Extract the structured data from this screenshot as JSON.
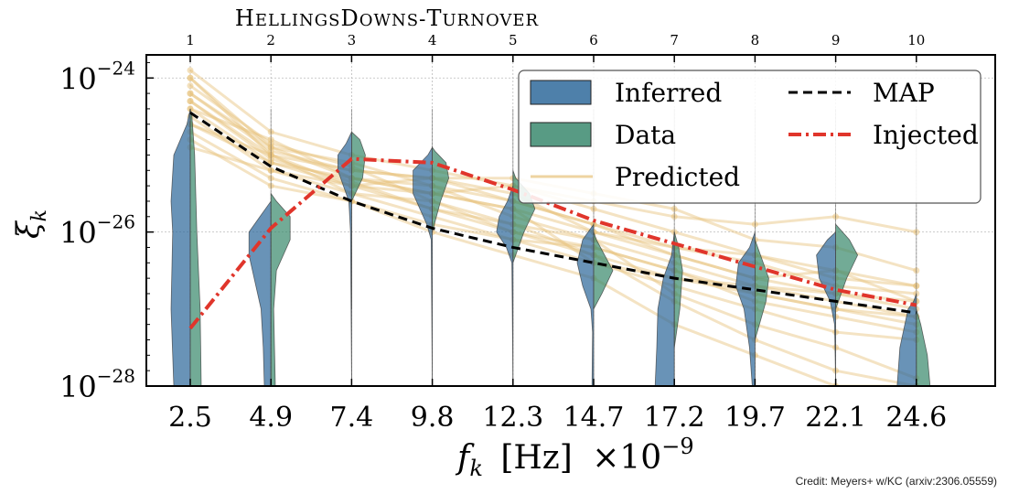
{
  "chart_data": {
    "type": "violin",
    "title_main": "HellingsDowns-Turnover",
    "ylabel": "ξ_k",
    "xlabel_symbol": "f_k",
    "xlabel_unit": "[Hz]",
    "xlabel_scale": "×10",
    "xlabel_exp": "−9",
    "credit": "Credit: Meyers+ w/KC (arxiv:2306.05559)",
    "yscale": "log",
    "ylim": [
      1e-28,
      1e-23
    ],
    "yticks": [
      {
        "base": "10",
        "exp": "−24",
        "value": -24
      },
      {
        "base": "10",
        "exp": "−26",
        "value": -26
      },
      {
        "base": "10",
        "exp": "−28",
        "value": -28
      }
    ],
    "x_bottom_ticks": [
      "2.5",
      "4.9",
      "7.4",
      "9.8",
      "12.3",
      "14.7",
      "17.2",
      "19.7",
      "22.1",
      "24.6"
    ],
    "x_top_ticks": [
      "1",
      "2",
      "3",
      "4",
      "5",
      "6",
      "7",
      "8",
      "9",
      "10"
    ],
    "colors": {
      "inferred": "#2f6a9b",
      "data": "#3b8a6e",
      "predicted": "#e7c279",
      "map": "#000000",
      "injected": "#e0352b"
    },
    "legend": {
      "position": "upper-right",
      "entries": [
        {
          "label": "Inferred",
          "kind": "patch",
          "color_key": "inferred"
        },
        {
          "label": "MAP",
          "kind": "dashed",
          "color_key": "map"
        },
        {
          "label": "Data",
          "kind": "patch",
          "color_key": "data"
        },
        {
          "label": "Injected",
          "kind": "dashdot",
          "color_key": "injected"
        },
        {
          "label": "Predicted",
          "kind": "line",
          "color_key": "predicted"
        }
      ]
    },
    "series": [
      {
        "name": "MAP",
        "log10_values": [
          -24.45,
          -25.15,
          -25.6,
          -25.95,
          -26.2,
          -26.4,
          -26.6,
          -26.75,
          -26.9,
          -27.05
        ]
      },
      {
        "name": "Injected",
        "log10_values": [
          -27.25,
          -25.95,
          -25.05,
          -25.1,
          -25.45,
          -25.85,
          -26.15,
          -26.45,
          -26.75,
          -26.95
        ]
      }
    ],
    "violins": {
      "inferred_left": [
        {
          "k": 1,
          "shape": [
            [
              -28.0,
              0.3
            ],
            [
              -27.0,
              0.35
            ],
            [
              -26.0,
              0.32
            ],
            [
              -25.6,
              0.35
            ],
            [
              -25.0,
              0.3
            ],
            [
              -24.6,
              0.06
            ],
            [
              -24.4,
              0.0
            ]
          ]
        },
        {
          "k": 2,
          "shape": [
            [
              -28.0,
              0.12
            ],
            [
              -27.5,
              0.14
            ],
            [
              -27.0,
              0.18
            ],
            [
              -26.3,
              0.4
            ],
            [
              -26.0,
              0.4
            ],
            [
              -25.8,
              0.2
            ],
            [
              -25.6,
              0.0
            ]
          ]
        },
        {
          "k": 3,
          "shape": [
            [
              -28.0,
              0.0
            ],
            [
              -26.0,
              0.02
            ],
            [
              -25.6,
              0.05
            ],
            [
              -25.2,
              0.25
            ],
            [
              -25.0,
              0.25
            ],
            [
              -24.85,
              0.1
            ],
            [
              -24.7,
              0.0
            ]
          ]
        },
        {
          "k": 4,
          "shape": [
            [
              -28.0,
              0.0
            ],
            [
              -26.1,
              0.02
            ],
            [
              -25.9,
              0.1
            ],
            [
              -25.5,
              0.35
            ],
            [
              -25.2,
              0.35
            ],
            [
              -25.0,
              0.08
            ],
            [
              -24.9,
              0.0
            ]
          ]
        },
        {
          "k": 5,
          "shape": [
            [
              -28.0,
              0.0
            ],
            [
              -26.4,
              0.02
            ],
            [
              -26.2,
              0.12
            ],
            [
              -26.0,
              0.3
            ],
            [
              -25.8,
              0.25
            ],
            [
              -25.6,
              0.1
            ],
            [
              -25.4,
              0.0
            ]
          ]
        },
        {
          "k": 6,
          "shape": [
            [
              -28.0,
              0.03
            ],
            [
              -27.3,
              0.02
            ],
            [
              -27.0,
              0.05
            ],
            [
              -26.7,
              0.2
            ],
            [
              -26.4,
              0.3
            ],
            [
              -26.1,
              0.2
            ],
            [
              -25.9,
              0.0
            ]
          ]
        },
        {
          "k": 7,
          "shape": [
            [
              -28.0,
              0.35
            ],
            [
              -27.5,
              0.32
            ],
            [
              -27.0,
              0.3
            ],
            [
              -26.6,
              0.2
            ],
            [
              -26.3,
              0.05
            ],
            [
              -26.0,
              0.0
            ]
          ]
        },
        {
          "k": 8,
          "shape": [
            [
              -28.0,
              0.05
            ],
            [
              -27.5,
              0.1
            ],
            [
              -27.0,
              0.2
            ],
            [
              -26.7,
              0.35
            ],
            [
              -26.4,
              0.3
            ],
            [
              -26.2,
              0.1
            ],
            [
              -26.0,
              0.0
            ]
          ]
        },
        {
          "k": 9,
          "shape": [
            [
              -28.0,
              0.0
            ],
            [
              -27.2,
              0.02
            ],
            [
              -26.9,
              0.1
            ],
            [
              -26.6,
              0.3
            ],
            [
              -26.3,
              0.35
            ],
            [
              -26.1,
              0.15
            ],
            [
              -26.0,
              0.0
            ]
          ]
        },
        {
          "k": 10,
          "shape": [
            [
              -28.0,
              0.35
            ],
            [
              -27.5,
              0.3
            ],
            [
              -27.0,
              0.15
            ],
            [
              -26.9,
              0.05
            ],
            [
              -26.8,
              0.0
            ]
          ]
        }
      ],
      "data_right": [
        {
          "k": 1,
          "shape": [
            [
              -28.0,
              0.2
            ],
            [
              -27.0,
              0.18
            ],
            [
              -26.0,
              0.12
            ],
            [
              -25.0,
              0.08
            ],
            [
              -24.5,
              0.03
            ],
            [
              -24.4,
              0.0
            ]
          ]
        },
        {
          "k": 2,
          "shape": [
            [
              -28.0,
              0.08
            ],
            [
              -27.0,
              0.05
            ],
            [
              -26.5,
              0.1
            ],
            [
              -26.1,
              0.35
            ],
            [
              -25.8,
              0.35
            ],
            [
              -25.6,
              0.1
            ],
            [
              -25.5,
              0.0
            ]
          ]
        },
        {
          "k": 3,
          "shape": [
            [
              -27.0,
              0.0
            ],
            [
              -25.6,
              0.0
            ],
            [
              -25.3,
              0.2
            ],
            [
              -25.0,
              0.25
            ],
            [
              -24.8,
              0.15
            ],
            [
              -24.7,
              0.0
            ]
          ]
        },
        {
          "k": 4,
          "shape": [
            [
              -26.0,
              0.0
            ],
            [
              -25.6,
              0.15
            ],
            [
              -25.3,
              0.3
            ],
            [
              -25.1,
              0.25
            ],
            [
              -24.95,
              0.05
            ],
            [
              -24.9,
              0.0
            ]
          ]
        },
        {
          "k": 5,
          "shape": [
            [
              -26.4,
              0.0
            ],
            [
              -26.0,
              0.2
            ],
            [
              -25.7,
              0.4
            ],
            [
              -25.5,
              0.3
            ],
            [
              -25.3,
              0.05
            ],
            [
              -25.2,
              0.0
            ]
          ]
        },
        {
          "k": 6,
          "shape": [
            [
              -27.0,
              0.0
            ],
            [
              -26.8,
              0.15
            ],
            [
              -26.5,
              0.35
            ],
            [
              -26.3,
              0.2
            ],
            [
              -26.1,
              0.05
            ],
            [
              -26.0,
              0.0
            ]
          ]
        },
        {
          "k": 7,
          "shape": [
            [
              -27.5,
              0.0
            ],
            [
              -27.0,
              0.1
            ],
            [
              -26.5,
              0.15
            ],
            [
              -26.2,
              0.08
            ],
            [
              -26.0,
              0.0
            ]
          ]
        },
        {
          "k": 8,
          "shape": [
            [
              -27.4,
              0.0
            ],
            [
              -26.9,
              0.2
            ],
            [
              -26.6,
              0.25
            ],
            [
              -26.3,
              0.1
            ],
            [
              -26.1,
              0.0
            ]
          ]
        },
        {
          "k": 9,
          "shape": [
            [
              -27.0,
              0.0
            ],
            [
              -26.6,
              0.2
            ],
            [
              -26.3,
              0.4
            ],
            [
              -26.1,
              0.25
            ],
            [
              -25.9,
              0.0
            ]
          ]
        },
        {
          "k": 10,
          "shape": [
            [
              -28.0,
              0.25
            ],
            [
              -27.6,
              0.2
            ],
            [
              -27.2,
              0.08
            ],
            [
              -27.0,
              0.0
            ]
          ]
        }
      ]
    },
    "predicted_lines": [
      [
        -24.0,
        -25.0,
        -25.2,
        -25.3,
        -25.6,
        -25.9,
        -26.2,
        -26.4,
        -26.7,
        -26.8
      ],
      [
        -24.2,
        -24.9,
        -25.1,
        -25.4,
        -25.8,
        -26.1,
        -26.4,
        -26.7,
        -26.9,
        -27.1
      ],
      [
        -24.4,
        -24.8,
        -25.3,
        -25.5,
        -25.7,
        -26.0,
        -26.3,
        -26.6,
        -26.8,
        -26.9
      ],
      [
        -23.9,
        -24.7,
        -25.0,
        -25.2,
        -25.4,
        -25.7,
        -26.0,
        -26.3,
        -26.5,
        -26.7
      ],
      [
        -24.6,
        -25.1,
        -25.4,
        -25.7,
        -26.0,
        -26.2,
        -26.5,
        -26.8,
        -27.0,
        -27.2
      ],
      [
        -24.3,
        -25.0,
        -25.4,
        -25.3,
        -25.3,
        -25.5,
        -25.7,
        -26.1,
        -26.2,
        -26.5
      ],
      [
        -24.5,
        -25.2,
        -25.5,
        -25.8,
        -26.1,
        -26.4,
        -26.7,
        -27.0,
        -27.3,
        -27.4
      ],
      [
        -24.1,
        -24.85,
        -25.15,
        -25.6,
        -26.0,
        -26.3,
        -26.9,
        -27.4,
        -27.8,
        -28.0
      ],
      [
        -24.7,
        -25.3,
        -25.6,
        -26.0,
        -26.3,
        -26.6,
        -27.2,
        -27.6,
        -28.0,
        -28.0
      ],
      [
        -24.0,
        -24.9,
        -25.3,
        -25.5,
        -25.4,
        -25.6,
        -25.8,
        -25.9,
        -25.8,
        -26.0
      ],
      [
        -24.4,
        -25.1,
        -25.3,
        -25.4,
        -25.6,
        -25.9,
        -26.3,
        -26.6,
        -26.5,
        -26.9
      ],
      [
        -24.8,
        -25.4,
        -25.6,
        -25.9,
        -26.1,
        -26.2,
        -26.5,
        -26.9,
        -27.1,
        -27.3
      ],
      [
        -24.2,
        -24.95,
        -25.2,
        -25.3,
        -25.5,
        -26.0,
        -26.2,
        -26.3,
        -26.6,
        -26.7
      ],
      [
        -24.6,
        -25.0,
        -25.5,
        -25.6,
        -25.9,
        -26.3,
        -26.6,
        -26.8,
        -27.0,
        -27.1
      ],
      [
        -24.3,
        -25.05,
        -25.35,
        -25.7,
        -25.9,
        -26.1,
        -26.8,
        -27.2,
        -27.5,
        -27.9
      ],
      [
        -24.9,
        -25.2,
        -25.4,
        -25.5,
        -25.7,
        -26.4,
        -26.6,
        -26.7,
        -26.8,
        -27.0
      ]
    ]
  }
}
